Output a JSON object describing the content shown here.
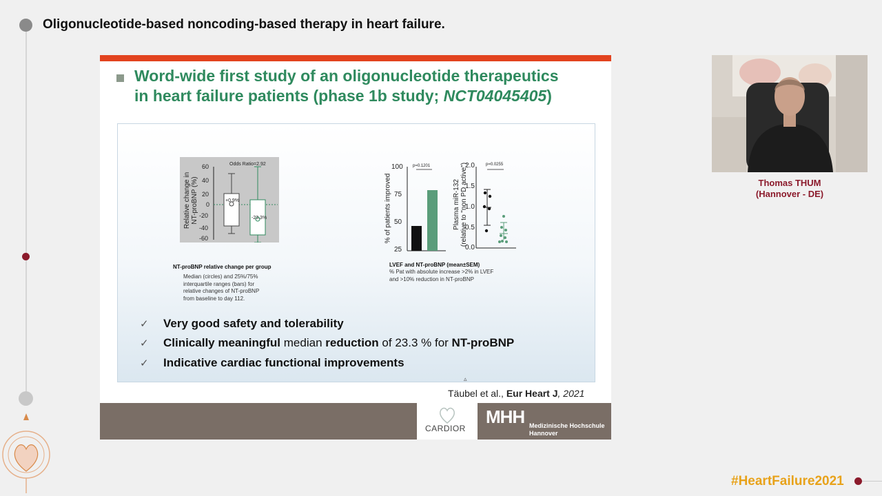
{
  "page": {
    "title": "Oligonucleotide-based noncoding-based therapy in heart failure."
  },
  "slide": {
    "heading_line1": "Word-wide first study of an oligonucleotide therapeutics",
    "heading_line2_prefix": "in heart failure patients (phase 1b study; ",
    "heading_line2_trial": "NCT04045405",
    "heading_line2_suffix": ")",
    "boxplot": {
      "title": "Odds Ratio=2.92",
      "ylabel_line1": "Relative change in",
      "ylabel_line2": "NT-proBNP (%)",
      "ticks": [
        "60",
        "40",
        "20",
        "0",
        "-20",
        "-40",
        "-60"
      ],
      "label_placebo": "+0.9%",
      "label_treated": "-23.3%",
      "caption_title": "NT-proBNP relative change per group",
      "caption_lines": [
        "Median (circles) and 25%/75%",
        "interquartile ranges (bars) for",
        "relative changes of NT-proBNP",
        "from baseline to day 112."
      ]
    },
    "barchart": {
      "pvalue": "p=0.1201",
      "ylabel": "% of patients improved",
      "ticks": [
        "100",
        "75",
        "50",
        "25"
      ],
      "caption_title": "LVEF and NT-proBNP (mean±SEM)",
      "caption_lines": [
        "% Pat with absolute increase >2% in LVEF",
        "and  >10% reduction in NT-proBNP"
      ]
    },
    "scatter": {
      "pvalue": "p=0.0255",
      "ylabel_line1": "Plasma miR-132",
      "ylabel_line2": "(relative to \"non PD active\")",
      "ticks": [
        "2.0",
        "1.5",
        "1.0",
        "0.5",
        "0.0"
      ]
    },
    "checks": {
      "row1": "Very good safety and tolerability",
      "row2_b1": "Clinically meaningful",
      "row2_t1": " median ",
      "row2_b2": "reduction",
      "row2_t2": " of 23.3 % for ",
      "row2_b3": "NT-proBNP",
      "row3": "Indicative cardiac functional improvements"
    },
    "citation": {
      "authors": "Täubel et al., ",
      "journal": "Eur Heart J",
      "year": ", 2021"
    },
    "footer": {
      "cardior": "CARDIOR",
      "mhh_logo": "MHH",
      "mhh_line1": "Medizinische Hochschule",
      "mhh_line2": "Hannover"
    }
  },
  "speaker": {
    "name": "Thomas THUM",
    "affiliation": "(Hannover - DE)"
  },
  "hashtag": "#HeartFailure2021",
  "colors": {
    "accent_red": "#8b1a2b",
    "slide_green": "#2f8a5e",
    "topbar_orange": "#e2431f",
    "hashtag_gold": "#e8a21a"
  }
}
